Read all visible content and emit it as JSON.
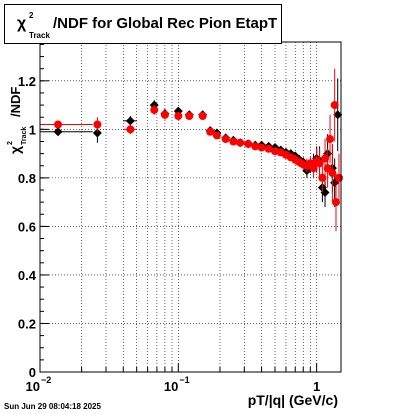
{
  "title": {
    "chi": "χ",
    "sup": "2",
    "sub": "Track",
    "text": "/NDF for Global Rec Pion EtapT"
  },
  "timestamp": "Sun Jun 29 08:04:18 2025",
  "chart_data": {
    "type": "scatter",
    "xlabel": "pT/|q| (GeV/c)",
    "ylabel": "χ²Track/NDF",
    "ylabel_parts": {
      "chi": "χ",
      "sup": "2",
      "sub": "Track",
      "rest": "/NDF"
    },
    "x_scale": "log",
    "xlim": [
      0.01,
      1.5
    ],
    "ylim": [
      0,
      1.36
    ],
    "x_ticks": [
      {
        "value": 0.01,
        "base": "10",
        "exp": "−2"
      },
      {
        "value": 0.1,
        "base": "10",
        "exp": "−1"
      },
      {
        "value": 1,
        "base": "1",
        "exp": ""
      }
    ],
    "y_ticks": [
      {
        "value": 0,
        "label": "0"
      },
      {
        "value": 0.2,
        "label": "0.2"
      },
      {
        "value": 0.4,
        "label": "0.4"
      },
      {
        "value": 0.6,
        "label": "0.6"
      },
      {
        "value": 0.8,
        "label": "0.8"
      },
      {
        "value": 1.0,
        "label": "1"
      },
      {
        "value": 1.2,
        "label": "1.2"
      }
    ],
    "grid": true,
    "series": [
      {
        "color": "#000000",
        "points": [
          {
            "x": 0.0135,
            "y": 0.99,
            "xerr": [
              0.01,
              0.024
            ]
          },
          {
            "x": 0.026,
            "y": 0.985,
            "ey": 0.04
          },
          {
            "x": 0.045,
            "y": 1.035,
            "xerr": [
              0.04,
              0.05
            ],
            "ey": 0.02
          },
          {
            "x": 0.067,
            "y": 1.1,
            "ey": 0.02
          },
          {
            "x": 0.08,
            "y": 1.065,
            "ey": 0.02
          },
          {
            "x": 0.1,
            "y": 1.075,
            "ey": 0.01
          },
          {
            "x": 0.12,
            "y": 1.06,
            "ey": 0.01
          },
          {
            "x": 0.15,
            "y": 1.06,
            "ey": 0.01
          },
          {
            "x": 0.17,
            "y": 0.995
          },
          {
            "x": 0.19,
            "y": 0.985
          },
          {
            "x": 0.22,
            "y": 0.965
          },
          {
            "x": 0.25,
            "y": 0.955
          },
          {
            "x": 0.28,
            "y": 0.945
          },
          {
            "x": 0.32,
            "y": 0.94
          },
          {
            "x": 0.36,
            "y": 0.935
          },
          {
            "x": 0.4,
            "y": 0.935
          },
          {
            "x": 0.45,
            "y": 0.93
          },
          {
            "x": 0.5,
            "y": 0.925
          },
          {
            "x": 0.55,
            "y": 0.915
          },
          {
            "x": 0.6,
            "y": 0.905
          },
          {
            "x": 0.65,
            "y": 0.9
          },
          {
            "x": 0.7,
            "y": 0.89
          },
          {
            "x": 0.75,
            "y": 0.875,
            "ey": 0.02
          },
          {
            "x": 0.8,
            "y": 0.865,
            "ey": 0.02
          },
          {
            "x": 0.85,
            "y": 0.83,
            "ey": 0.03
          },
          {
            "x": 0.9,
            "y": 0.85,
            "ey": 0.03
          },
          {
            "x": 0.95,
            "y": 0.86,
            "ey": 0.04
          },
          {
            "x": 1.0,
            "y": 0.88,
            "ey": 0.05
          },
          {
            "x": 1.05,
            "y": 0.87,
            "ey": 0.06
          },
          {
            "x": 1.1,
            "y": 0.76,
            "ey": 0.06
          },
          {
            "x": 1.15,
            "y": 0.74,
            "ey": 0.06
          },
          {
            "x": 1.2,
            "y": 0.9,
            "ey": 0.08
          },
          {
            "x": 1.3,
            "y": 0.84,
            "ey": 0.1
          },
          {
            "x": 1.35,
            "y": 0.78,
            "ey": 0.1
          },
          {
            "x": 1.42,
            "y": 1.06,
            "ey": 0.15
          }
        ]
      },
      {
        "color": "#ff0000",
        "points": [
          {
            "x": 0.0135,
            "y": 1.02,
            "xerr": [
              0.01,
              0.024
            ]
          },
          {
            "x": 0.026,
            "y": 1.02,
            "ey": 0.03
          },
          {
            "x": 0.045,
            "y": 1.0,
            "xerr": [
              0.04,
              0.05
            ],
            "ey": 0.02
          },
          {
            "x": 0.067,
            "y": 1.08,
            "ey": 0.02
          },
          {
            "x": 0.08,
            "y": 1.06,
            "ey": 0.02
          },
          {
            "x": 0.1,
            "y": 1.055,
            "ey": 0.01
          },
          {
            "x": 0.12,
            "y": 1.055,
            "ey": 0.01
          },
          {
            "x": 0.15,
            "y": 1.055,
            "ey": 0.01
          },
          {
            "x": 0.17,
            "y": 0.99
          },
          {
            "x": 0.19,
            "y": 0.975
          },
          {
            "x": 0.22,
            "y": 0.96
          },
          {
            "x": 0.25,
            "y": 0.95
          },
          {
            "x": 0.28,
            "y": 0.945
          },
          {
            "x": 0.32,
            "y": 0.94
          },
          {
            "x": 0.36,
            "y": 0.93
          },
          {
            "x": 0.4,
            "y": 0.925
          },
          {
            "x": 0.45,
            "y": 0.92
          },
          {
            "x": 0.5,
            "y": 0.91
          },
          {
            "x": 0.55,
            "y": 0.905
          },
          {
            "x": 0.6,
            "y": 0.895
          },
          {
            "x": 0.65,
            "y": 0.885
          },
          {
            "x": 0.7,
            "y": 0.875,
            "ey": 0.02
          },
          {
            "x": 0.75,
            "y": 0.865,
            "ey": 0.02
          },
          {
            "x": 0.8,
            "y": 0.855,
            "ey": 0.02
          },
          {
            "x": 0.85,
            "y": 0.85,
            "ey": 0.03
          },
          {
            "x": 0.9,
            "y": 0.86,
            "ey": 0.03
          },
          {
            "x": 0.95,
            "y": 0.84,
            "ey": 0.04
          },
          {
            "x": 1.0,
            "y": 0.87,
            "ey": 0.05
          },
          {
            "x": 1.05,
            "y": 0.86,
            "ey": 0.06
          },
          {
            "x": 1.1,
            "y": 0.8,
            "ey": 0.06
          },
          {
            "x": 1.15,
            "y": 0.88,
            "ey": 0.08
          },
          {
            "x": 1.2,
            "y": 0.84,
            "ey": 0.08
          },
          {
            "x": 1.25,
            "y": 0.96,
            "ey": 0.1
          },
          {
            "x": 1.3,
            "y": 0.82,
            "ey": 0.12
          },
          {
            "x": 1.35,
            "y": 1.1,
            "ey": 0.15
          },
          {
            "x": 1.38,
            "y": 0.7,
            "ey": 0.12
          },
          {
            "x": 1.45,
            "y": 0.8,
            "ey": 0.1
          }
        ]
      }
    ]
  }
}
